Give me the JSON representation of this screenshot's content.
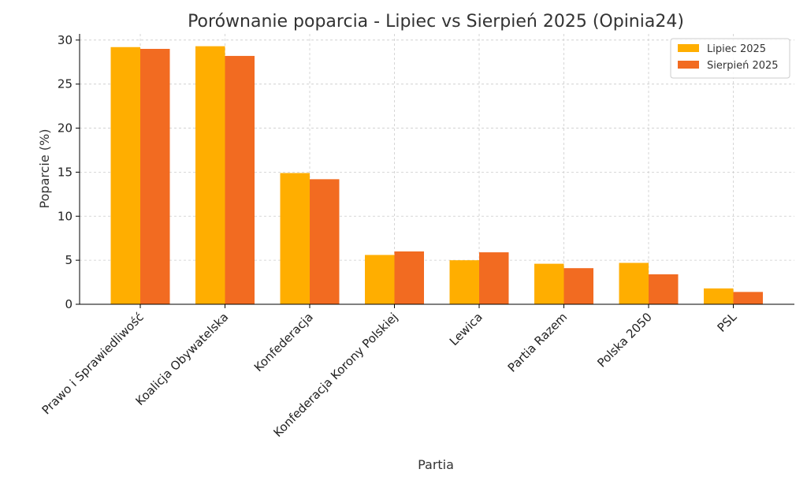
{
  "chart_data": {
    "type": "bar",
    "title": "Porównanie poparcia - Lipiec vs Sierpień 2025 (Opinia24)",
    "xlabel": "Partia",
    "ylabel": "Poparcie (%)",
    "categories": [
      "Prawo i Sprawiedliwość",
      "Koalicja Obywatelska",
      "Konfederacja",
      "Konfederacja Korony Polskiej",
      "Lewica",
      "Partia Razem",
      "Polska 2050",
      "PSL"
    ],
    "series": [
      {
        "name": "Lipiec 2025",
        "color": "#FFAE00",
        "values": [
          29.2,
          29.3,
          14.9,
          5.6,
          5.0,
          4.6,
          4.7,
          1.8
        ]
      },
      {
        "name": "Sierpień 2025",
        "color": "#F26B21",
        "values": [
          29.0,
          28.2,
          14.2,
          6.0,
          5.9,
          4.1,
          3.4,
          1.4
        ]
      }
    ],
    "ylim": [
      0,
      30.7
    ],
    "yticks": [
      0,
      5,
      10,
      15,
      20,
      25,
      30
    ],
    "grid": true,
    "legend_position": "top-right"
  }
}
